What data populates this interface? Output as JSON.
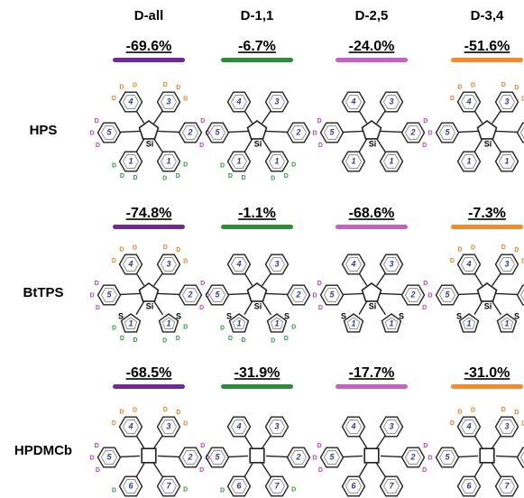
{
  "columns": [
    {
      "name": "D-all",
      "color": "#6f2a96"
    },
    {
      "name": "D-1,1",
      "color": "#2e8b3a"
    },
    {
      "name": "D-2,5",
      "color": "#c262c2"
    },
    {
      "name": "D-3,4",
      "color": "#f28a2e"
    }
  ],
  "deuterium": "D",
  "rows": [
    {
      "label": "HPS",
      "center": "Si",
      "hetero": null,
      "rings": [
        "4",
        "3",
        "5",
        "2",
        "1",
        "1"
      ],
      "values": [
        "-69.6%",
        "-6.7%",
        "-24.0%",
        "-51.6%"
      ]
    },
    {
      "label": "BtTPS",
      "center": "Si",
      "hetero": "S",
      "rings": [
        "4",
        "3",
        "5",
        "2",
        "1",
        "1"
      ],
      "values": [
        "-74.8%",
        "-1.1%",
        "-68.6%",
        "-7.3%"
      ]
    },
    {
      "label": "HPDMCb",
      "center": null,
      "hetero": null,
      "rings": [
        "4",
        "3",
        "5",
        "2",
        "6",
        "7"
      ],
      "values": [
        "-68.5%",
        "-31.9%",
        "-17.7%",
        "-31.0%"
      ]
    }
  ]
}
